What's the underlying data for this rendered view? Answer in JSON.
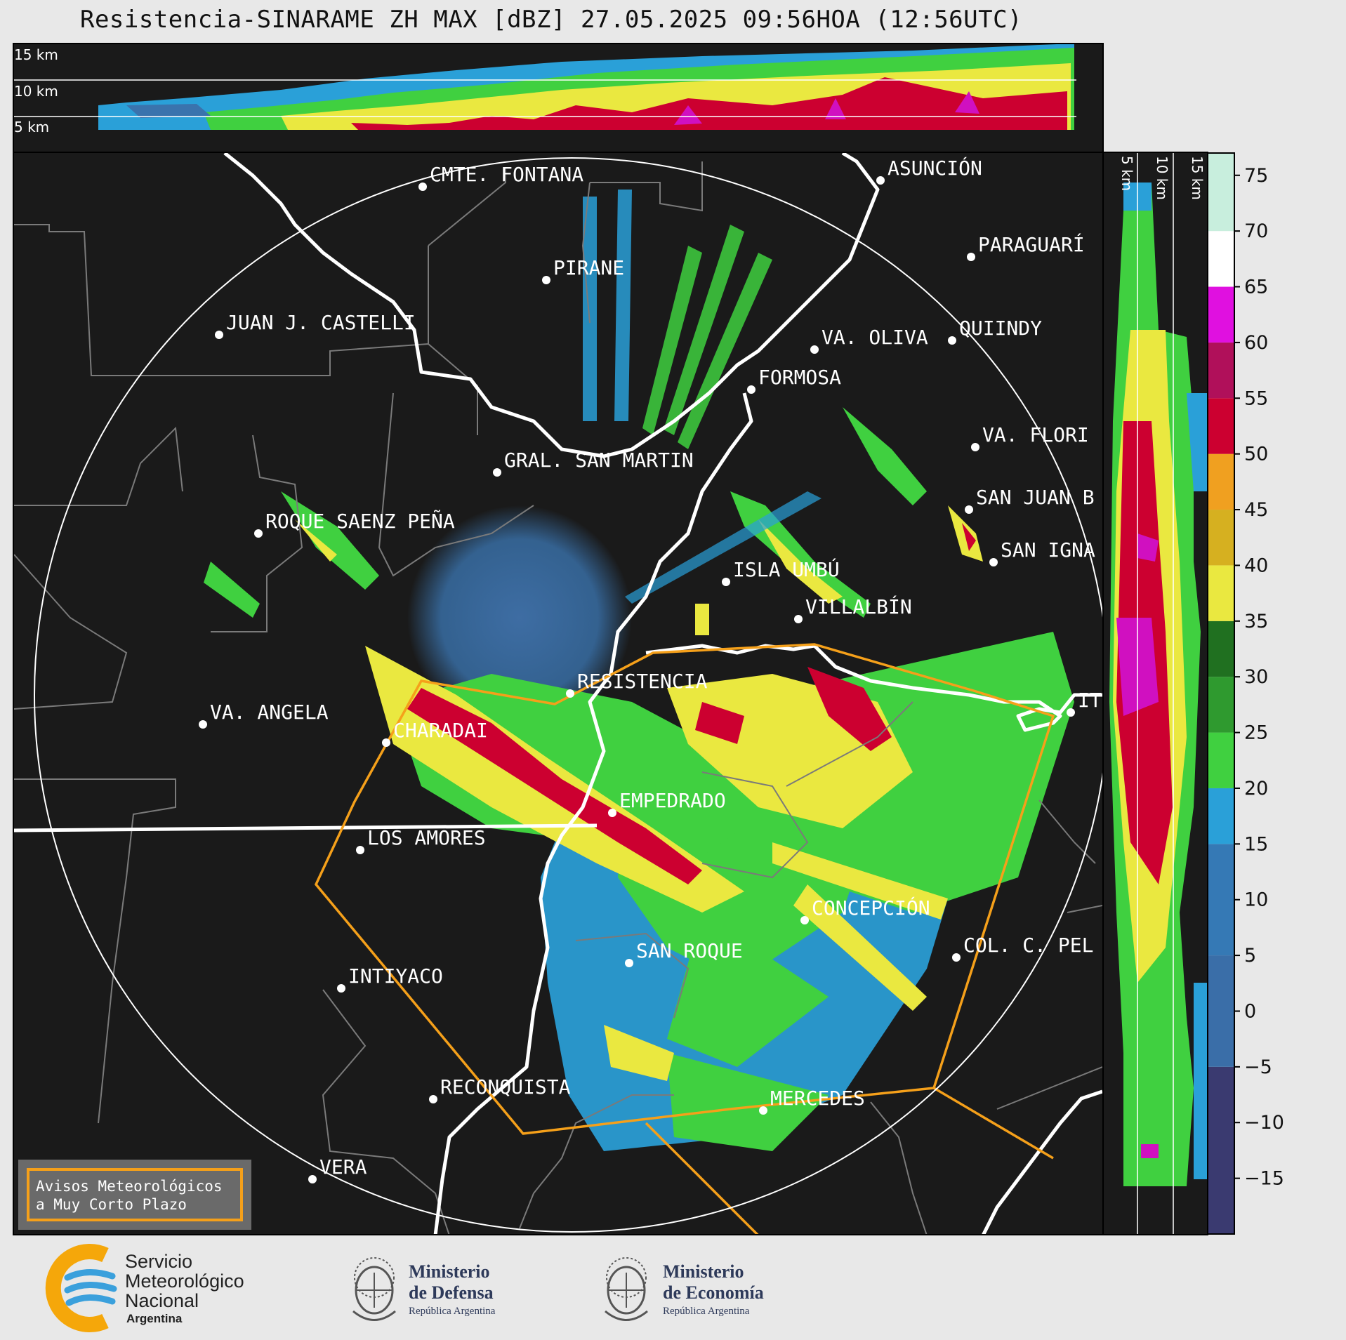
{
  "header": {
    "title": "Resistencia-SINARAME ZH MAX [dBZ] 27.05.2025 09:56HOA (12:56UTC)"
  },
  "top_panel": {
    "height_labels": [
      "15 km",
      "10 km",
      "5 km"
    ]
  },
  "side_panel": {
    "height_labels": [
      "5 km",
      "10 km",
      "15 km"
    ]
  },
  "colorbar": {
    "ticks": [
      "75",
      "70",
      "65",
      "60",
      "55",
      "50",
      "45",
      "40",
      "35",
      "30",
      "25",
      "20",
      "15",
      "10",
      "5",
      "0",
      "−5",
      "−10",
      "−15"
    ],
    "colors": {
      "high": "#7fd6b4",
      "white": "#ffffff",
      "purple": "#9a0aa0",
      "magenta": "#e010e0",
      "red": "#cc0030",
      "orange": "#f0a020",
      "yellow": "#eae840",
      "dkgreen": "#207020",
      "green": "#40d040",
      "blue": "#2aa0d8",
      "steel": "#3a6ea8",
      "navy": "#3a3a70"
    }
  },
  "cities": [
    {
      "name": "CMTE. FONTANA"
    },
    {
      "name": "ASUNCIÓN"
    },
    {
      "name": "PARAGUARÍ"
    },
    {
      "name": "PIRANE"
    },
    {
      "name": "JUAN J. CASTELLI"
    },
    {
      "name": "VA. OLIVA"
    },
    {
      "name": "QUIINDY"
    },
    {
      "name": "FORMOSA"
    },
    {
      "name": "VA. FLORI"
    },
    {
      "name": "GRAL. SAN MARTIN"
    },
    {
      "name": "SAN JUAN B"
    },
    {
      "name": "ROQUE SAENZ PEÑA"
    },
    {
      "name": "SAN IGNA"
    },
    {
      "name": "ISLA UMBÚ"
    },
    {
      "name": "VILLALBÍN"
    },
    {
      "name": "RESISTENCIA"
    },
    {
      "name": "VA. ANGELA"
    },
    {
      "name": "CHARADAI"
    },
    {
      "name": "IT"
    },
    {
      "name": "EMPEDRADO"
    },
    {
      "name": "LOS AMORES"
    },
    {
      "name": "CONCEPCIÓN"
    },
    {
      "name": "COL. C. PEL"
    },
    {
      "name": "SAN ROQUE"
    },
    {
      "name": "INTIYACO"
    },
    {
      "name": "RECONQUISTA"
    },
    {
      "name": "MERCEDES"
    },
    {
      "name": "VERA"
    }
  ],
  "warning_box": {
    "line1": "Avisos Meteorológicos",
    "line2": "a Muy Corto Plazo"
  },
  "logos": {
    "smn": [
      "Servicio",
      "Meteorológico",
      "Nacional",
      "Argentina"
    ],
    "defensa": [
      "Ministerio",
      "de Defensa",
      "República Argentina"
    ],
    "economia": [
      "Ministerio",
      "de Economía",
      "República Argentina"
    ]
  }
}
